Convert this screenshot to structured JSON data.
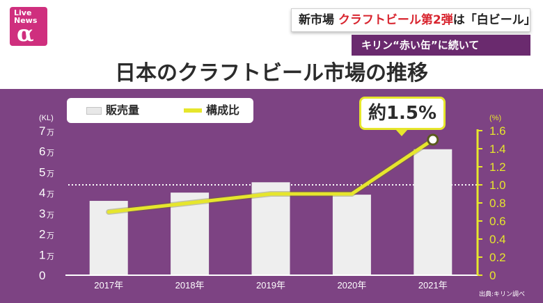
{
  "logo": {
    "line1": "Live",
    "line2": "News",
    "symbol": "α"
  },
  "caption": {
    "line1_a": "新市場 ",
    "line1_b": "クラフトビール第2弾",
    "line1_c": "は「白ビール」",
    "line2": "キリン“赤い缶”に続いて"
  },
  "colors": {
    "panel": "#7d4383",
    "bar": "#eeeeee",
    "line": "#e6e62c",
    "accent_red": "#d8242e"
  },
  "chart_data": {
    "type": "bar",
    "title": "日本のクラフトビール市場の推移",
    "categories": [
      "2017年",
      "2018年",
      "2019年",
      "2020年",
      "2021年"
    ],
    "series": [
      {
        "name": "販売量",
        "type": "bar",
        "axis": "left",
        "values": [
          36000,
          40000,
          45000,
          39000,
          61000
        ]
      },
      {
        "name": "構成比",
        "type": "line",
        "axis": "right",
        "values": [
          0.7,
          0.8,
          0.9,
          0.9,
          1.5
        ]
      }
    ],
    "y_left": {
      "unit": "(KL)",
      "ylim": [
        0,
        70000
      ],
      "ticks": [
        {
          "value": 0,
          "num": "0",
          "suffix": ""
        },
        {
          "value": 10000,
          "num": "1",
          "suffix": "万"
        },
        {
          "value": 20000,
          "num": "2",
          "suffix": "万"
        },
        {
          "value": 30000,
          "num": "3",
          "suffix": "万"
        },
        {
          "value": 40000,
          "num": "4",
          "suffix": "万"
        },
        {
          "value": 50000,
          "num": "5",
          "suffix": "万"
        },
        {
          "value": 60000,
          "num": "6",
          "suffix": "万"
        },
        {
          "value": 70000,
          "num": "7",
          "suffix": "万"
        }
      ]
    },
    "y_right": {
      "unit": "(%)",
      "ylim": [
        0,
        1.6
      ],
      "ticks": [
        "0",
        "0.2",
        "0.4",
        "0.6",
        "0.8",
        "1.0",
        "1.2",
        "1.4",
        "1.6"
      ],
      "reference_line": 1.0
    },
    "annotation": "約1.5%",
    "legend": {
      "position": "top-left",
      "labels": [
        "販売量",
        "構成比"
      ]
    },
    "source": "出典:キリン調べ",
    "grid": false
  }
}
